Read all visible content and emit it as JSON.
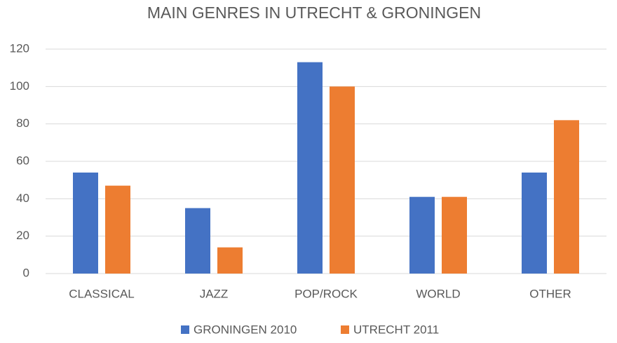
{
  "chart_data": {
    "type": "bar",
    "title": "MAIN GENRES IN UTRECHT & GRONINGEN",
    "categories": [
      "CLASSICAL",
      "JAZZ",
      "POP/ROCK",
      "WORLD",
      "OTHER"
    ],
    "series": [
      {
        "name": "GRONINGEN 2010",
        "color": "#4472c4",
        "values": [
          54,
          35,
          113,
          41,
          54
        ]
      },
      {
        "name": "UTRECHT 2011",
        "color": "#ed7d31",
        "values": [
          47,
          14,
          100,
          41,
          82
        ]
      }
    ],
    "ylim": [
      0,
      120
    ],
    "yticks": [
      0,
      20,
      40,
      60,
      80,
      100,
      120
    ],
    "grid": true,
    "legend": "bottom"
  }
}
